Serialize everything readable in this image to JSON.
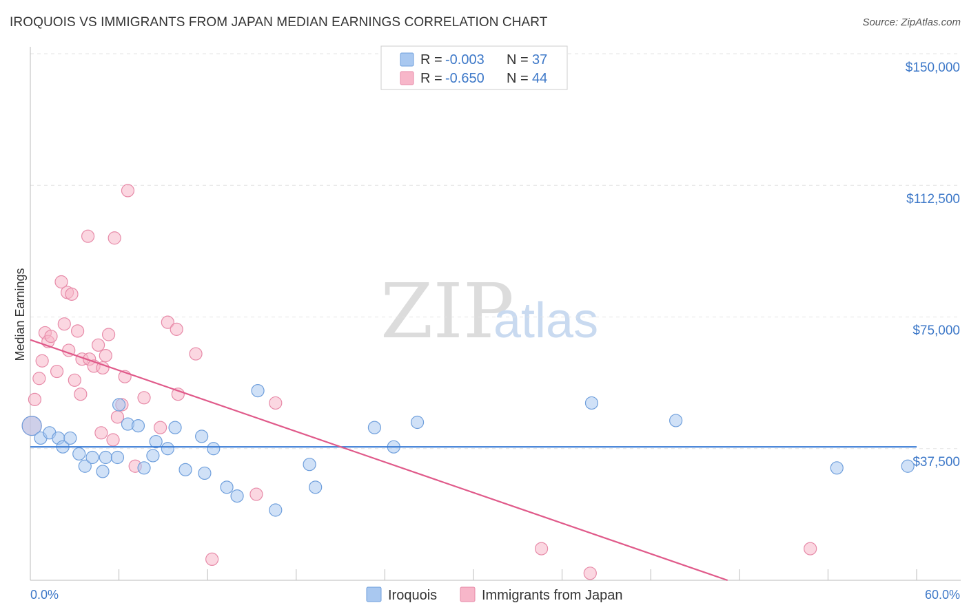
{
  "header": {
    "title": "IROQUOIS VS IMMIGRANTS FROM JAPAN MEDIAN EARNINGS CORRELATION CHART",
    "source": "Source: ZipAtlas.com"
  },
  "watermark": {
    "zip": "ZIP",
    "atlas": "atlas"
  },
  "legend_top": {
    "rows": [
      {
        "r_label": "R =",
        "r_value": "-0.003",
        "n_label": "N =",
        "n_value": "37",
        "color": "#a9c8f0"
      },
      {
        "r_label": "R =",
        "r_value": "-0.650",
        "n_label": "N =",
        "n_value": "44",
        "color": "#f7b6c9"
      }
    ]
  },
  "legend_bottom": {
    "items": [
      {
        "label": "Iroquois",
        "color": "#a9c8f0"
      },
      {
        "label": "Immigrants from Japan",
        "color": "#f7b6c9"
      }
    ]
  },
  "chart_data": {
    "type": "scatter",
    "title": "IROQUOIS VS IMMIGRANTS FROM JAPAN MEDIAN EARNINGS CORRELATION CHART",
    "xlabel": "",
    "ylabel": "Median Earnings",
    "xlim": [
      0,
      60
    ],
    "ylim": [
      0,
      155000
    ],
    "x_tick_labels": [
      "0.0%",
      "60.0%"
    ],
    "y_ticks": [
      37500,
      75000,
      112500,
      150000
    ],
    "y_tick_labels": [
      "$37,500",
      "$75,000",
      "$112,500",
      "$150,000"
    ],
    "grid": true,
    "colors": {
      "iroquois": "#3a7bd5",
      "iroquois_fill": "#a9c8f0",
      "japan": "#e05a8a",
      "japan_fill": "#f7b6c9"
    },
    "series": [
      {
        "name": "Iroquois",
        "trend": {
          "x": [
            0,
            60
          ],
          "y": [
            38000,
            38000
          ]
        },
        "points": [
          [
            0.1,
            44000
          ],
          [
            0.7,
            40500
          ],
          [
            1.3,
            42000
          ],
          [
            1.9,
            40500
          ],
          [
            2.2,
            38000
          ],
          [
            2.7,
            40500
          ],
          [
            3.3,
            36000
          ],
          [
            3.7,
            32500
          ],
          [
            4.2,
            35000
          ],
          [
            4.9,
            31000
          ],
          [
            5.1,
            35000
          ],
          [
            5.9,
            35000
          ],
          [
            6.0,
            50000
          ],
          [
            6.6,
            44500
          ],
          [
            7.3,
            44000
          ],
          [
            7.7,
            32000
          ],
          [
            8.3,
            35500
          ],
          [
            8.5,
            39500
          ],
          [
            9.3,
            37500
          ],
          [
            9.8,
            43500
          ],
          [
            10.5,
            31500
          ],
          [
            11.6,
            41000
          ],
          [
            11.8,
            30500
          ],
          [
            12.4,
            37500
          ],
          [
            13.3,
            26500
          ],
          [
            14.0,
            24000
          ],
          [
            15.4,
            54000
          ],
          [
            16.6,
            20000
          ],
          [
            18.9,
            33000
          ],
          [
            19.3,
            26500
          ],
          [
            23.3,
            43500
          ],
          [
            24.6,
            38000
          ],
          [
            26.2,
            45000
          ],
          [
            38.0,
            50500
          ],
          [
            43.7,
            45500
          ],
          [
            54.6,
            32000
          ],
          [
            59.4,
            32500
          ]
        ]
      },
      {
        "name": "Immigrants from Japan",
        "trend": {
          "x": [
            0,
            47.2
          ],
          "y": [
            68500,
            0
          ]
        },
        "points": [
          [
            0.3,
            51500
          ],
          [
            0.6,
            57500
          ],
          [
            0.8,
            62500
          ],
          [
            1.0,
            70500
          ],
          [
            1.2,
            68000
          ],
          [
            1.4,
            69500
          ],
          [
            1.8,
            59500
          ],
          [
            2.1,
            85000
          ],
          [
            2.3,
            73000
          ],
          [
            2.5,
            82000
          ],
          [
            2.6,
            65500
          ],
          [
            2.8,
            81500
          ],
          [
            3.0,
            57000
          ],
          [
            3.2,
            71000
          ],
          [
            3.4,
            53000
          ],
          [
            3.5,
            63000
          ],
          [
            3.9,
            98000
          ],
          [
            4.0,
            63000
          ],
          [
            4.3,
            61000
          ],
          [
            4.6,
            67000
          ],
          [
            4.8,
            42000
          ],
          [
            4.9,
            60500
          ],
          [
            5.1,
            64000
          ],
          [
            5.3,
            70000
          ],
          [
            5.6,
            40000
          ],
          [
            5.7,
            97500
          ],
          [
            5.9,
            46500
          ],
          [
            6.2,
            50000
          ],
          [
            6.4,
            58000
          ],
          [
            6.6,
            111000
          ],
          [
            7.1,
            32500
          ],
          [
            7.7,
            52000
          ],
          [
            8.8,
            43500
          ],
          [
            9.3,
            73500
          ],
          [
            9.9,
            71500
          ],
          [
            10.0,
            53000
          ],
          [
            11.2,
            64500
          ],
          [
            12.3,
            6000
          ],
          [
            15.3,
            24500
          ],
          [
            16.6,
            50500
          ],
          [
            34.6,
            9000
          ],
          [
            37.9,
            2000
          ],
          [
            52.8,
            9000
          ],
          [
            0.1,
            44000
          ]
        ]
      }
    ]
  }
}
